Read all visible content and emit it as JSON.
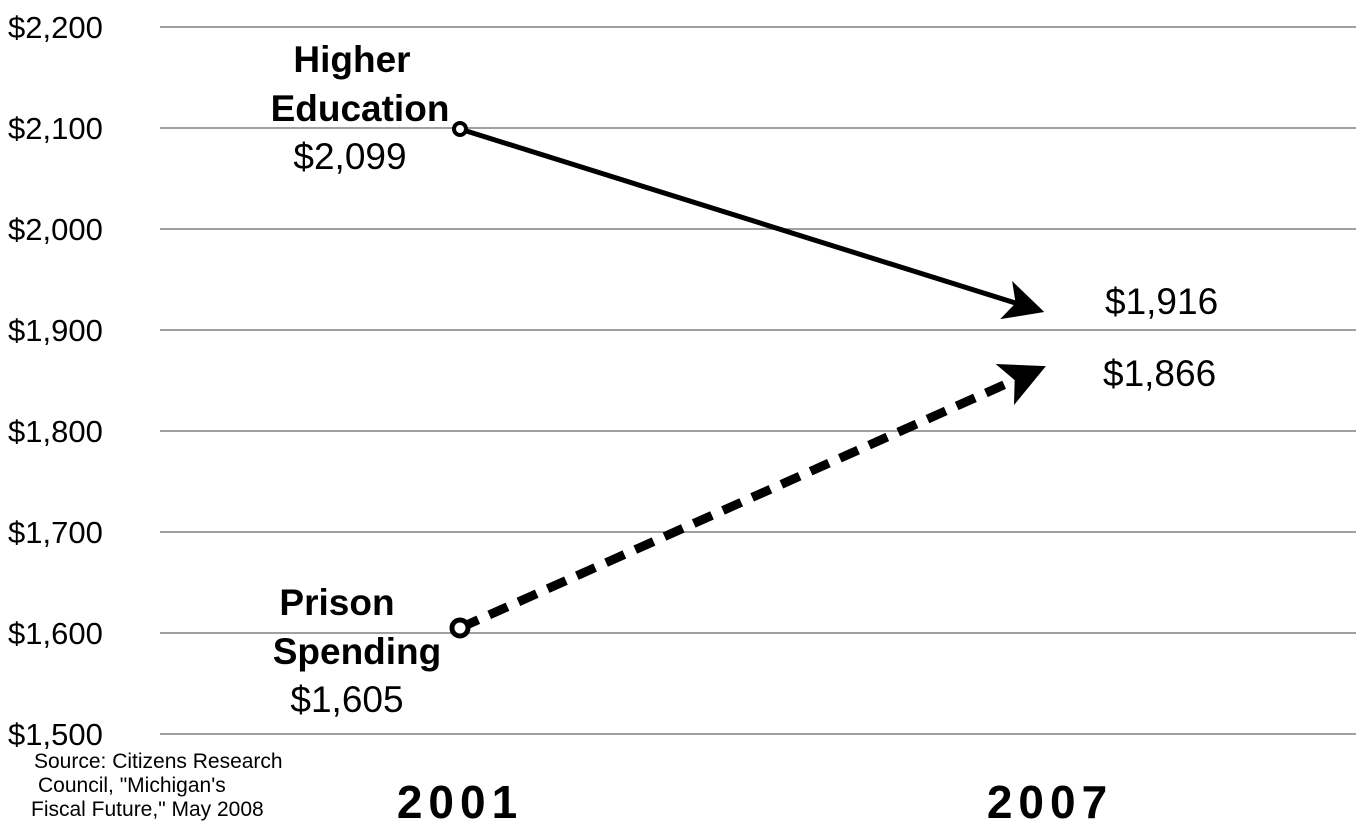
{
  "chart_data": {
    "type": "line",
    "title": "",
    "xlabel": "",
    "ylabel": "",
    "x": [
      "2001",
      "2007"
    ],
    "ylim": [
      1500,
      2200
    ],
    "yticks": [
      "$2,200",
      "$2,100",
      "$2,000",
      "$1,900",
      "$1,800",
      "$1,700",
      "$1,600",
      "$1,500"
    ],
    "grid": true,
    "legend": "none",
    "series": [
      {
        "name": "Higher Education",
        "name_lines": [
          "Higher",
          "Education"
        ],
        "values": [
          2099,
          1916
        ],
        "value_labels": [
          "$2,099",
          "$1,916"
        ],
        "style": "solid-arrow",
        "color": "#000000"
      },
      {
        "name": "Prison Spending",
        "name_lines": [
          "Prison",
          "Spending"
        ],
        "values": [
          1605,
          1866
        ],
        "value_labels": [
          "$1,605",
          "$1,866"
        ],
        "style": "dashed-arrow",
        "color": "#000000"
      }
    ],
    "source_lines": [
      "Source: Citizens Research",
      "Council, \"Michigan's",
      "Fiscal Future,\" May 2008"
    ]
  }
}
